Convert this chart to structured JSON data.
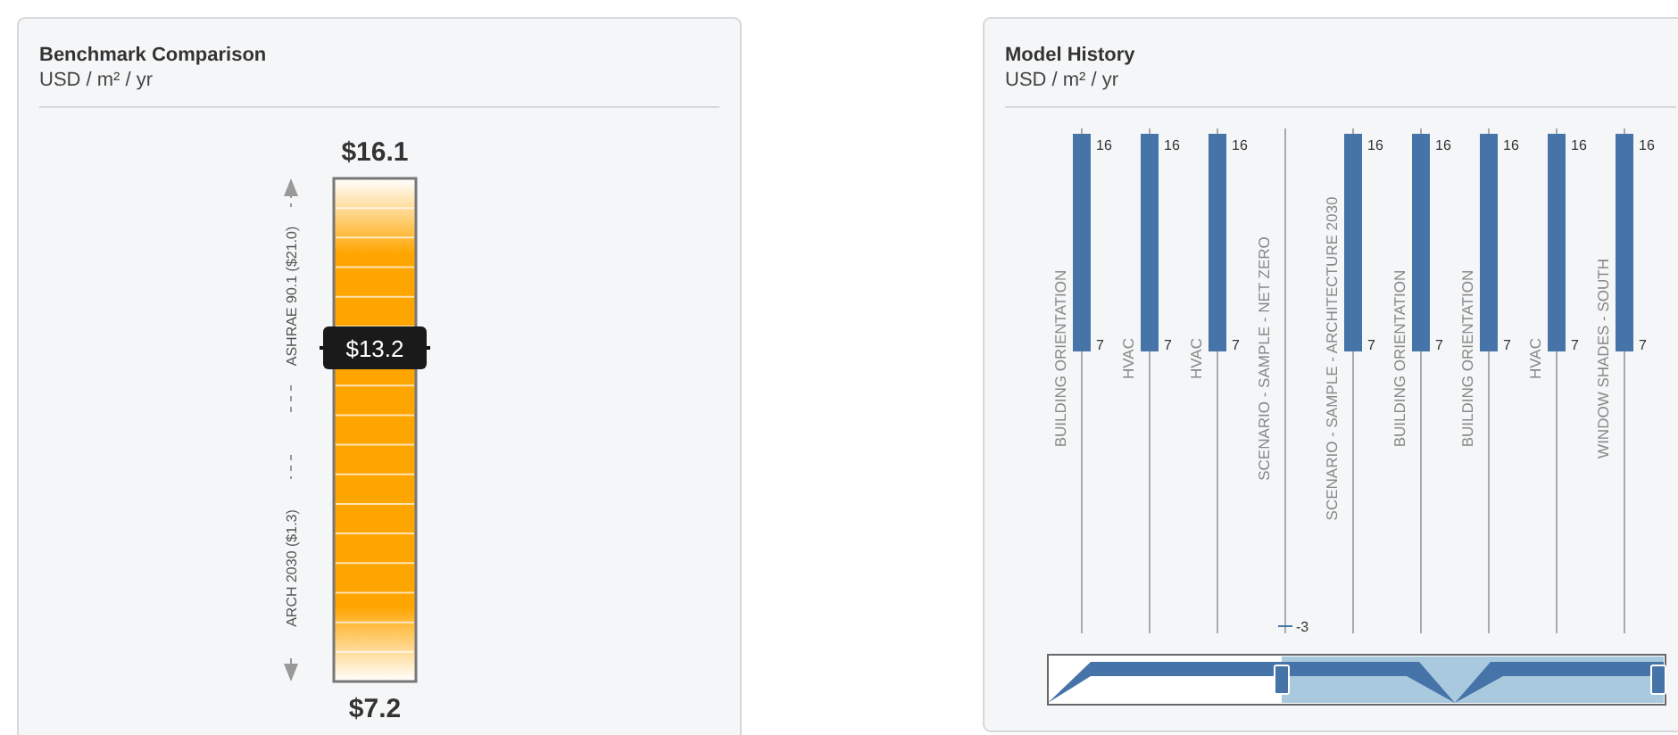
{
  "chart_data": [
    {
      "type": "other",
      "title": "Benchmark Comparison",
      "subtitle": "USD / m² / yr",
      "color": "#ffa500",
      "annotations": [
        "$16.1",
        "$7.2",
        "$13.2",
        "ASHRAE 90.1 ($21.0)",
        "ARCH 2030 ($1.3)"
      ]
    },
    {
      "type": "bar",
      "title": "Model History",
      "subtitle": "USD / m² / yr",
      "categories": [
        "BUILDING ORIENTATION",
        "HVAC",
        "HVAC",
        "SCENARIO - SAMPLE - NET ZERO",
        "SCENARIO - SAMPLE - ARCHITECTURE 2030",
        "BUILDING ORIENTATION",
        "BUILDING ORIENTATION",
        "HVAC",
        "WINDOW SHADES - SOUTH"
      ],
      "base": [
        7,
        7,
        7,
        null,
        7,
        7,
        7,
        7,
        7
      ],
      "values": [
        9,
        9,
        9,
        null,
        9,
        9,
        9,
        9,
        9
      ],
      "color": "#4673a8",
      "grid": "x",
      "ylim": [
        7,
        16
      ],
      "yticks": [
        7,
        16
      ],
      "annotations": [
        "16",
        "7",
        "16",
        "7",
        "16",
        "7",
        "16",
        "7",
        "16",
        "7",
        "16",
        "7",
        "16",
        "7",
        "-3"
      ]
    }
  ]
}
